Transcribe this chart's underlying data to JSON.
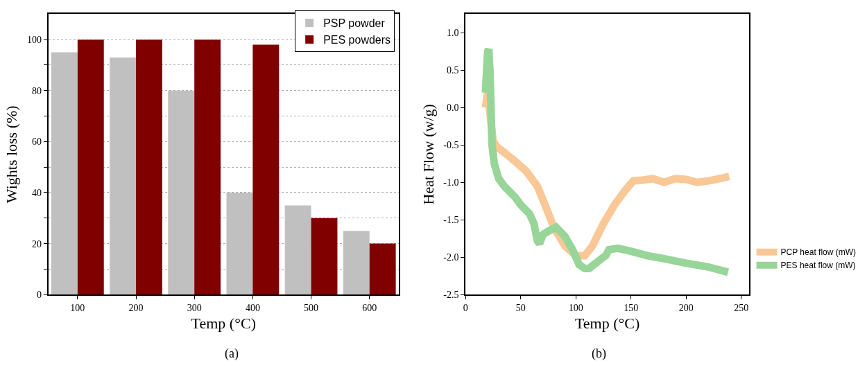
{
  "chart_data": [
    {
      "type": "bar",
      "categories": [
        "100",
        "200",
        "300",
        "400",
        "500",
        "600"
      ],
      "xlabel": "Temp (°C)",
      "ylabel": "Wights loss (%)",
      "series": [
        {
          "name": "PSP powder",
          "color": "#c0c0c0",
          "values": [
            95,
            93,
            80,
            40,
            35,
            25
          ]
        },
        {
          "name": "PES powders",
          "color": "#800000",
          "values": [
            100,
            100,
            100,
            98,
            30,
            20
          ]
        }
      ],
      "ylim": [
        0,
        110
      ],
      "yticks": [
        0,
        {
          "value": 10,
          "label": null
        },
        20,
        {
          "value": 30,
          "label": null
        },
        40,
        {
          "value": 50,
          "label": null
        },
        60,
        {
          "value": 70,
          "label": null
        },
        80,
        {
          "value": 90,
          "label": null
        },
        100
      ],
      "grid": "y",
      "legend": "top right",
      "annotations": [
        "(a)"
      ]
    },
    {
      "type": "line",
      "xlabel": "Temp (°C)",
      "ylabel": "Heat Flow (w/g)",
      "series": [
        {
          "name": "PCP heat flow (mW)",
          "color": "#f9c896",
          "x": [
            18,
            20,
            23,
            25,
            28,
            35,
            45,
            55,
            65,
            72,
            80,
            90,
            100,
            108,
            115,
            125,
            135,
            145,
            152,
            160,
            170,
            180,
            190,
            200,
            210,
            220,
            230,
            239
          ],
          "values": [
            0.0,
            0.2,
            -0.2,
            -0.45,
            -0.52,
            -0.6,
            -0.72,
            -0.85,
            -1.05,
            -1.3,
            -1.6,
            -1.85,
            -1.98,
            -1.98,
            -1.85,
            -1.55,
            -1.3,
            -1.1,
            -0.98,
            -0.97,
            -0.95,
            -1.0,
            -0.95,
            -0.96,
            -1.0,
            -0.98,
            -0.95,
            -0.92
          ]
        },
        {
          "name": "PES heat flow (mW)",
          "color": "#98d598",
          "x": [
            18,
            20,
            21,
            22,
            23,
            24,
            26,
            30,
            35,
            45,
            50,
            58,
            62,
            65,
            67,
            70,
            75,
            82,
            90,
            97,
            103,
            108,
            112,
            118,
            125,
            127,
            130,
            138,
            150,
            165,
            180,
            200,
            220,
            238
          ],
          "values": [
            0.2,
            0.75,
            0.78,
            0.5,
            0.0,
            -0.5,
            -0.75,
            -0.95,
            -1.05,
            -1.2,
            -1.3,
            -1.42,
            -1.55,
            -1.78,
            -1.82,
            -1.7,
            -1.65,
            -1.6,
            -1.72,
            -1.9,
            -2.1,
            -2.15,
            -2.15,
            -2.08,
            -2.0,
            -1.98,
            -1.9,
            -1.88,
            -1.92,
            -1.98,
            -2.02,
            -2.08,
            -2.13,
            -2.2
          ]
        }
      ],
      "xlim": [
        0,
        257
      ],
      "xticks": [
        0,
        50,
        100,
        150,
        200,
        250
      ],
      "ylim": [
        -2.5,
        1.25
      ],
      "yticks": [
        -2.5,
        {
          "value": -2,
          "label": "-2.0"
        },
        -1.5,
        {
          "value": -1,
          "label": "-1.0"
        },
        -0.5,
        {
          "value": 0,
          "label": "0.0"
        },
        0.5,
        {
          "value": 1,
          "label": "1.0"
        }
      ],
      "grid": false,
      "legend": "right",
      "marker": "none",
      "line_style": "solid",
      "annotations": [
        "(b)"
      ]
    }
  ]
}
